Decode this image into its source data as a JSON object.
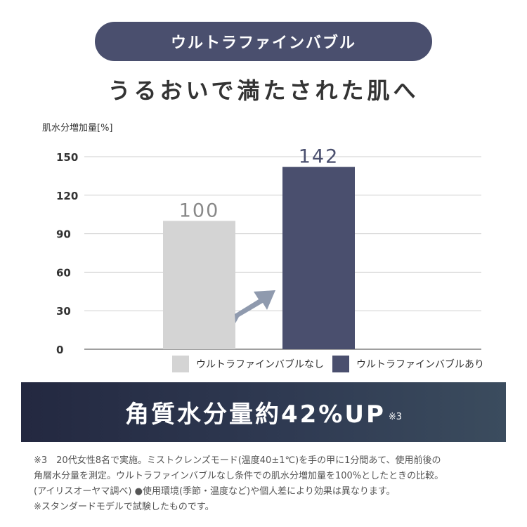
{
  "header": {
    "pill_label": "ウルトラファインバブル",
    "headline": "うるおいで満たされた肌へ"
  },
  "colors": {
    "accent": "#4a4f6e",
    "bar_without": "#d4d4d4",
    "bar_with": "#4a4f6e",
    "arrow": "#8f9aae"
  },
  "chart_data": {
    "type": "bar",
    "ylabel": "肌水分増加量[%]",
    "yticks": [
      0,
      30,
      60,
      90,
      120,
      150
    ],
    "ylim": [
      0,
      150
    ],
    "grid": true,
    "categories": [
      "ウルトラファインバブルなし",
      "ウルトラファインバブルあり"
    ],
    "values": [
      100,
      142
    ],
    "data_labels": [
      "100",
      "142"
    ],
    "legend": [
      "ウルトラファインバブルなし",
      "ウルトラファインバブルあり"
    ],
    "legend_position": "bottom"
  },
  "banner": {
    "text": "角質水分量約42%UP",
    "footnote_mark": "※3"
  },
  "notes": [
    "※3　20代女性8名で実施。ミストクレンズモード(温度40±1℃)を手の甲に1分間あて、使用前後の",
    "角層水分量を測定。ウルトラファインバブルなし条件での肌水分増加量を100%としたときの比較。",
    "(アイリスオーヤマ調べ) ●使用環境(季節・温度など)や個人差により効果は異なります。",
    "※スタンダードモデルで試験したものです。"
  ]
}
